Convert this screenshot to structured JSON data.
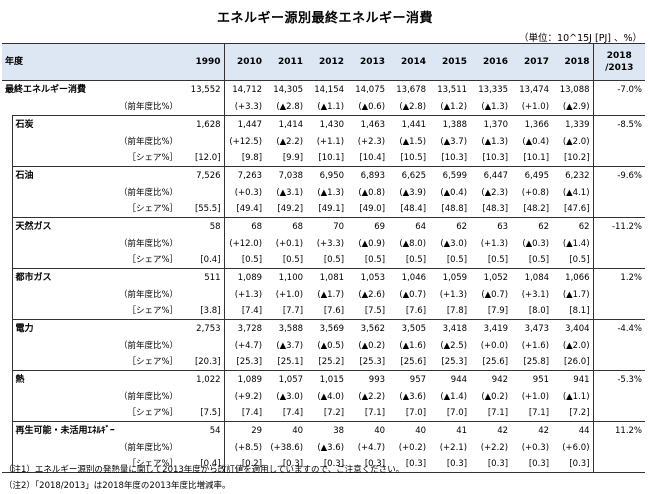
{
  "title": "エネルギー源別最終エネルギー消費",
  "unit": "（単位：10^15J [PJ] 、%）",
  "header": {
    "rowhead": "年度",
    "years": [
      "1990",
      "2010",
      "2011",
      "2012",
      "2013",
      "2014",
      "2015",
      "2016",
      "2017",
      "2018"
    ],
    "change_line1": "2018",
    "change_line2": "/2013"
  },
  "groups": [
    {
      "label": "最終エネルギー消費",
      "values": [
        "13,552",
        "14,712",
        "14,305",
        "14,154",
        "14,075",
        "13,678",
        "13,511",
        "13,335",
        "13,474",
        "13,088"
      ],
      "change": "-7.0%",
      "yoy_label": "（前年度比%）",
      "yoy": [
        "",
        "(+3.3)",
        "(▲2.8)",
        "(▲1.1)",
        "(▲0.6)",
        "(▲2.8)",
        "(▲1.2)",
        "(▲1.3)",
        "(+1.0)",
        "(▲2.9)"
      ]
    },
    {
      "label": "石炭",
      "values": [
        "1,628",
        "1,447",
        "1,414",
        "1,430",
        "1,463",
        "1,441",
        "1,388",
        "1,370",
        "1,366",
        "1,339"
      ],
      "change": "-8.5%",
      "yoy_label": "（前年度比%）",
      "yoy": [
        "",
        "(+12.5)",
        "(▲2.2)",
        "(+1.1)",
        "(+2.3)",
        "(▲1.5)",
        "(▲3.7)",
        "(▲1.3)",
        "(▲0.4)",
        "(▲2.0)"
      ],
      "share_label": "［シェア%］",
      "share": [
        "[12.0]",
        "[9.8]",
        "[9.9]",
        "[10.1]",
        "[10.4]",
        "[10.5]",
        "[10.3]",
        "[10.3]",
        "[10.1]",
        "[10.2]"
      ]
    },
    {
      "label": "石油",
      "values": [
        "7,526",
        "7,263",
        "7,038",
        "6,950",
        "6,893",
        "6,625",
        "6,599",
        "6,447",
        "6,495",
        "6,232"
      ],
      "change": "-9.6%",
      "yoy_label": "（前年度比%）",
      "yoy": [
        "",
        "(+0.3)",
        "(▲3.1)",
        "(▲1.3)",
        "(▲0.8)",
        "(▲3.9)",
        "(▲0.4)",
        "(▲2.3)",
        "(+0.8)",
        "(▲4.1)"
      ],
      "share_label": "［シェア%］",
      "share": [
        "[55.5]",
        "[49.4]",
        "[49.2]",
        "[49.1]",
        "[49.0]",
        "[48.4]",
        "[48.8]",
        "[48.3]",
        "[48.2]",
        "[47.6]"
      ]
    },
    {
      "label": "天然ガス",
      "values": [
        "58",
        "68",
        "68",
        "70",
        "69",
        "64",
        "62",
        "63",
        "62",
        "62"
      ],
      "change": "-11.2%",
      "yoy_label": "（前年度比%）",
      "yoy": [
        "",
        "(+12.0)",
        "(+0.1)",
        "(+3.3)",
        "(▲0.9)",
        "(▲8.0)",
        "(▲3.0)",
        "(+1.3)",
        "(▲0.3)",
        "(▲1.4)"
      ],
      "share_label": "［シェア%］",
      "share": [
        "[0.4]",
        "[0.5]",
        "[0.5]",
        "[0.5]",
        "[0.5]",
        "[0.5]",
        "[0.5]",
        "[0.5]",
        "[0.5]",
        "[0.5]"
      ]
    },
    {
      "label": "都市ガス",
      "values": [
        "511",
        "1,089",
        "1,100",
        "1,081",
        "1,053",
        "1,046",
        "1,059",
        "1,052",
        "1,084",
        "1,066"
      ],
      "change": "1.2%",
      "yoy_label": "（前年度比%）",
      "yoy": [
        "",
        "(+1.3)",
        "(+1.0)",
        "(▲1.7)",
        "(▲2.6)",
        "(▲0.7)",
        "(+1.3)",
        "(▲0.7)",
        "(+3.1)",
        "(▲1.7)"
      ],
      "share_label": "［シェア%］",
      "share": [
        "[3.8]",
        "[7.4]",
        "[7.7]",
        "[7.6]",
        "[7.5]",
        "[7.6]",
        "[7.8]",
        "[7.9]",
        "[8.0]",
        "[8.1]"
      ]
    },
    {
      "label": "電力",
      "values": [
        "2,753",
        "3,728",
        "3,588",
        "3,569",
        "3,562",
        "3,505",
        "3,418",
        "3,419",
        "3,473",
        "3,404"
      ],
      "change": "-4.4%",
      "yoy_label": "（前年度比%）",
      "yoy": [
        "",
        "(+4.7)",
        "(▲3.7)",
        "(▲0.5)",
        "(▲0.2)",
        "(▲1.6)",
        "(▲2.5)",
        "(+0.0)",
        "(+1.6)",
        "(▲2.0)"
      ],
      "share_label": "［シェア%］",
      "share": [
        "[20.3]",
        "[25.3]",
        "[25.1]",
        "[25.2]",
        "[25.3]",
        "[25.6]",
        "[25.3]",
        "[25.6]",
        "[25.8]",
        "[26.0]"
      ]
    },
    {
      "label": "熱",
      "values": [
        "1,022",
        "1,089",
        "1,057",
        "1,015",
        "993",
        "957",
        "944",
        "942",
        "951",
        "941"
      ],
      "change": "-5.3%",
      "yoy_label": "（前年度比%）",
      "yoy": [
        "",
        "(+9.2)",
        "(▲3.0)",
        "(▲4.0)",
        "(▲2.2)",
        "(▲3.6)",
        "(▲1.4)",
        "(▲0.2)",
        "(+1.0)",
        "(▲1.1)"
      ],
      "share_label": "［シェア%］",
      "share": [
        "[7.5]",
        "[7.4]",
        "[7.4]",
        "[7.2]",
        "[7.1]",
        "[7.0]",
        "[7.0]",
        "[7.1]",
        "[7.1]",
        "[7.2]"
      ]
    },
    {
      "label": "再生可能・未活用ｴﾈﾙｷﾞｰ",
      "values": [
        "54",
        "29",
        "40",
        "38",
        "40",
        "40",
        "41",
        "42",
        "42",
        "44"
      ],
      "change": "11.2%",
      "yoy_label": "（前年度比%）",
      "yoy": [
        "",
        "(+8.5)",
        "(+38.6)",
        "(▲3.6)",
        "(+4.7)",
        "(+0.2)",
        "(+2.1)",
        "(+2.2)",
        "(+0.3)",
        "(+6.0)"
      ],
      "share_label": "［シェア%］",
      "share": [
        "[0.4]",
        "[0.2]",
        "[0.3]",
        "[0.3]",
        "[0.3]",
        "[0.3]",
        "[0.3]",
        "[0.3]",
        "[0.3]",
        "[0.3]"
      ]
    }
  ],
  "notes": [
    "（注1）エネルギー源別の発熱量に関して2013年度から改訂値を適用していますので、ご注意ください。",
    "（注2）「2018/2013」は2018年度の2013年度比増減率。"
  ]
}
